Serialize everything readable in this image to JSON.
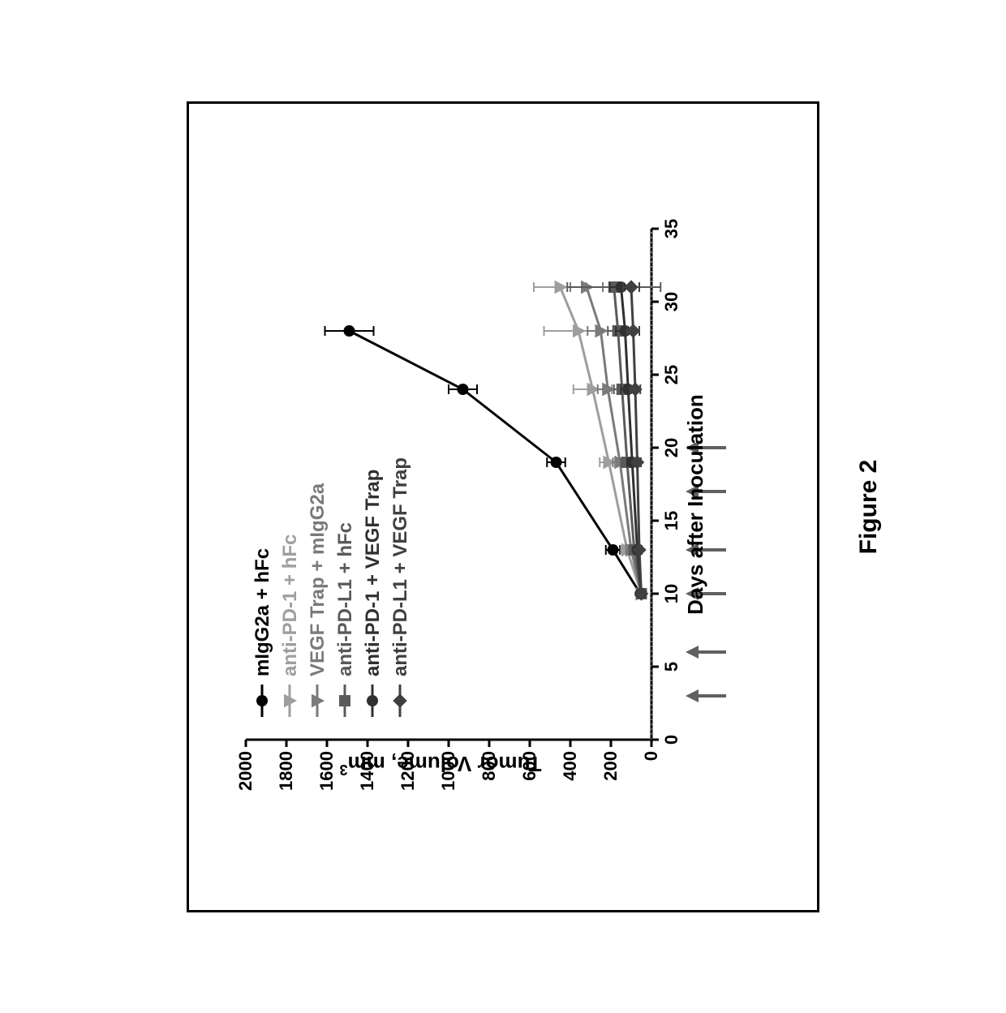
{
  "figure": {
    "caption": "Figure 2",
    "type": "line",
    "background_color": "#ffffff",
    "panel_border_color": "#000000",
    "panel_border_width": 3,
    "xaxis": {
      "label": "Days after Inoculation",
      "lim": [
        0,
        35
      ],
      "ticks": [
        0,
        5,
        10,
        15,
        20,
        25,
        30,
        35
      ],
      "tick_fontsize": 22,
      "label_fontsize": 26,
      "label_fontweight": "bold",
      "axis_color": "#000000"
    },
    "yaxis": {
      "label_prefix": "Tumor Volume, mm",
      "label_sup": "3",
      "lim": [
        0,
        2000
      ],
      "ticks": [
        0,
        200,
        400,
        600,
        800,
        1000,
        1200,
        1400,
        1600,
        1800,
        2000
      ],
      "tick_fontsize": 22,
      "label_fontsize": 26,
      "label_fontweight": "bold",
      "axis_color": "#000000"
    },
    "dosing_arrows": {
      "x": [
        3,
        6,
        10,
        13,
        17,
        20
      ],
      "y_at": -110,
      "color": "#606060",
      "length": 50
    },
    "zero_line": {
      "color": "#808080",
      "dash": "dotted"
    },
    "running_baseline": {
      "color": "#808080",
      "dash": "dotted",
      "x_from": 31,
      "x_to": 35
    },
    "legend": {
      "position": "upper-left",
      "fontsize": 24,
      "fontweight": "bold",
      "entries": [
        {
          "label": "mIgG2a + hFc",
          "color": "#000000",
          "marker": "circle"
        },
        {
          "label": "anti-PD-1 + hFc",
          "color": "#9e9e9e",
          "marker": "triangle-down"
        },
        {
          "label": "VEGF Trap + mIgG2a",
          "color": "#7a7a7a",
          "marker": "triangle-down"
        },
        {
          "label": "anti-PD-L1 + hFc",
          "color": "#5a5a5a",
          "marker": "square"
        },
        {
          "label": "anti-PD-1 + VEGF Trap",
          "color": "#303030",
          "marker": "circle"
        },
        {
          "label": "anti-PD-L1 + VEGF Trap",
          "color": "#404040",
          "marker": "diamond"
        }
      ]
    },
    "series": [
      {
        "id": "control",
        "legend_idx": 0,
        "color": "#000000",
        "marker": "circle",
        "line_width": 3,
        "x": [
          10,
          13,
          19,
          24,
          28
        ],
        "y": [
          55,
          190,
          470,
          930,
          1490
        ],
        "err": [
          0,
          35,
          45,
          70,
          120
        ]
      },
      {
        "id": "anti-pd1",
        "legend_idx": 1,
        "color": "#9e9e9e",
        "marker": "triangle-down",
        "line_width": 3,
        "x": [
          10,
          13,
          19,
          24,
          28,
          31
        ],
        "y": [
          50,
          120,
          210,
          290,
          360,
          450
        ],
        "err": [
          0,
          30,
          45,
          95,
          170,
          130
        ]
      },
      {
        "id": "vegf-trap",
        "legend_idx": 2,
        "color": "#7a7a7a",
        "marker": "triangle-down",
        "line_width": 3,
        "x": [
          10,
          13,
          19,
          24,
          28,
          31
        ],
        "y": [
          50,
          100,
          155,
          215,
          250,
          320
        ],
        "err": [
          0,
          25,
          35,
          50,
          65,
          80
        ]
      },
      {
        "id": "anti-pdl1",
        "legend_idx": 3,
        "color": "#5a5a5a",
        "marker": "square",
        "line_width": 3,
        "x": [
          10,
          13,
          19,
          24,
          28,
          31
        ],
        "y": [
          50,
          85,
          120,
          145,
          165,
          185
        ],
        "err": [
          0,
          20,
          30,
          40,
          50,
          230
        ]
      },
      {
        "id": "anti-pd1-vegf",
        "legend_idx": 4,
        "color": "#303030",
        "marker": "circle",
        "line_width": 3,
        "x": [
          10,
          13,
          19,
          24,
          28,
          31
        ],
        "y": [
          50,
          70,
          95,
          115,
          130,
          150
        ],
        "err": [
          0,
          15,
          25,
          35,
          45,
          55
        ]
      },
      {
        "id": "anti-pdl1-vegf",
        "legend_idx": 5,
        "color": "#404040",
        "marker": "diamond",
        "line_width": 3,
        "x": [
          10,
          13,
          19,
          24,
          28,
          31
        ],
        "y": [
          50,
          60,
          70,
          80,
          90,
          100
        ],
        "err": [
          0,
          12,
          18,
          25,
          30,
          40
        ]
      }
    ]
  }
}
